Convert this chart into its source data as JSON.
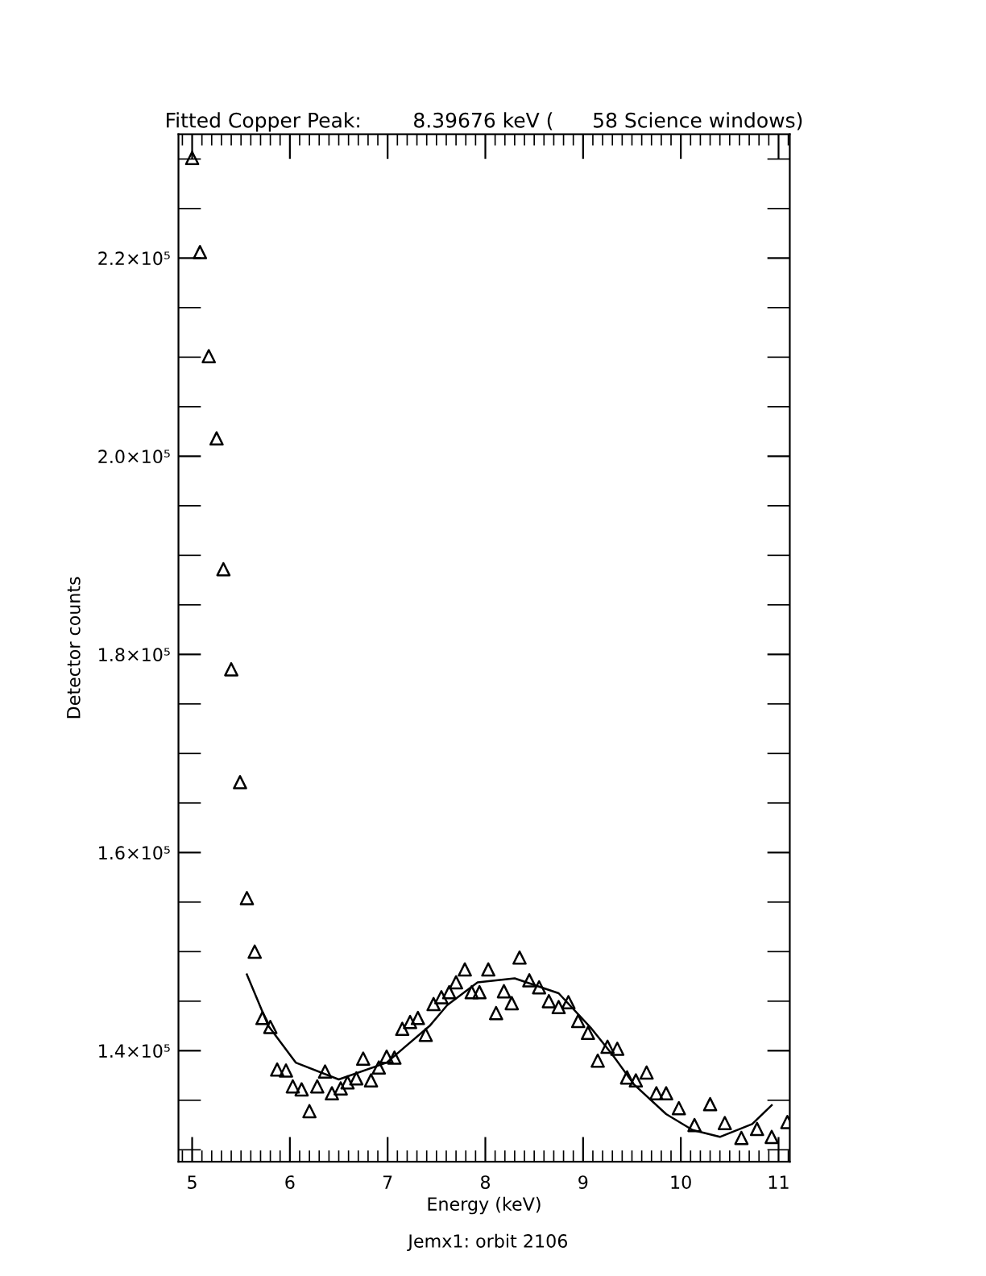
{
  "chart_data": {
    "type": "scatter",
    "title": "Fitted Copper Peak:        8.39676 keV (      58 Science windows)",
    "xlabel": "Energy (keV)",
    "ylabel": "Detector counts",
    "annotations": [
      "Jemx1: orbit 2106"
    ],
    "marker": "triangle",
    "grid": false,
    "legend": false,
    "xlim": [
      4.86,
      11.115
    ],
    "ylim": [
      128800,
      232500
    ],
    "xticks": [
      5,
      6,
      7,
      8,
      9,
      10,
      11,
      {
        "value": 4.9,
        "label": null
      },
      {
        "value": 5.1,
        "label": null
      },
      {
        "value": 5.2,
        "label": null
      },
      {
        "value": 5.3,
        "label": null
      },
      {
        "value": 5.4,
        "label": null
      },
      {
        "value": 5.5,
        "label": null
      },
      {
        "value": 5.6,
        "label": null
      },
      {
        "value": 5.7,
        "label": null
      },
      {
        "value": 5.8,
        "label": null
      },
      {
        "value": 5.9,
        "label": null
      },
      {
        "value": 6.1,
        "label": null
      },
      {
        "value": 6.2,
        "label": null
      },
      {
        "value": 6.3,
        "label": null
      },
      {
        "value": 6.4,
        "label": null
      },
      {
        "value": 6.5,
        "label": null
      },
      {
        "value": 6.6,
        "label": null
      },
      {
        "value": 6.7,
        "label": null
      },
      {
        "value": 6.8,
        "label": null
      },
      {
        "value": 6.9,
        "label": null
      },
      {
        "value": 7.1,
        "label": null
      },
      {
        "value": 7.2,
        "label": null
      },
      {
        "value": 7.3,
        "label": null
      },
      {
        "value": 7.4,
        "label": null
      },
      {
        "value": 7.5,
        "label": null
      },
      {
        "value": 7.6,
        "label": null
      },
      {
        "value": 7.7,
        "label": null
      },
      {
        "value": 7.8,
        "label": null
      },
      {
        "value": 7.9,
        "label": null
      },
      {
        "value": 8.1,
        "label": null
      },
      {
        "value": 8.2,
        "label": null
      },
      {
        "value": 8.3,
        "label": null
      },
      {
        "value": 8.4,
        "label": null
      },
      {
        "value": 8.5,
        "label": null
      },
      {
        "value": 8.6,
        "label": null
      },
      {
        "value": 8.7,
        "label": null
      },
      {
        "value": 8.8,
        "label": null
      },
      {
        "value": 8.9,
        "label": null
      },
      {
        "value": 9.1,
        "label": null
      },
      {
        "value": 9.2,
        "label": null
      },
      {
        "value": 9.3,
        "label": null
      },
      {
        "value": 9.4,
        "label": null
      },
      {
        "value": 9.5,
        "label": null
      },
      {
        "value": 9.6,
        "label": null
      },
      {
        "value": 9.7,
        "label": null
      },
      {
        "value": 9.8,
        "label": null
      },
      {
        "value": 9.9,
        "label": null
      },
      {
        "value": 10.1,
        "label": null
      },
      {
        "value": 10.2,
        "label": null
      },
      {
        "value": 10.3,
        "label": null
      },
      {
        "value": 10.4,
        "label": null
      },
      {
        "value": 10.5,
        "label": null
      },
      {
        "value": 10.6,
        "label": null
      },
      {
        "value": 10.7,
        "label": null
      },
      {
        "value": 10.8,
        "label": null
      },
      {
        "value": 10.9,
        "label": null
      },
      {
        "value": 11.1,
        "label": null
      }
    ],
    "yticks": [
      {
        "value": 140000,
        "label": "1.4×10⁵"
      },
      {
        "value": 160000,
        "label": "1.6×10⁵"
      },
      {
        "value": 180000,
        "label": "1.8×10⁵"
      },
      {
        "value": 200000,
        "label": "2.0×10⁵"
      },
      {
        "value": 220000,
        "label": "2.2×10⁵"
      },
      {
        "value": 130000,
        "label": null
      },
      {
        "value": 135000,
        "label": null
      },
      {
        "value": 145000,
        "label": null
      },
      {
        "value": 150000,
        "label": null
      },
      {
        "value": 155000,
        "label": null
      },
      {
        "value": 165000,
        "label": null
      },
      {
        "value": 170000,
        "label": null
      },
      {
        "value": 175000,
        "label": null
      },
      {
        "value": 185000,
        "label": null
      },
      {
        "value": 190000,
        "label": null
      },
      {
        "value": 195000,
        "label": null
      },
      {
        "value": 205000,
        "label": null
      },
      {
        "value": 210000,
        "label": null
      },
      {
        "value": 215000,
        "label": null
      },
      {
        "value": 225000,
        "label": null
      },
      {
        "value": 230000,
        "label": null
      }
    ],
    "series": [
      {
        "color": "#000000",
        "x": [
          5.0,
          5.08,
          5.17,
          5.25,
          5.32,
          5.4,
          5.49,
          5.56,
          5.64,
          5.72,
          5.8,
          5.87,
          5.96,
          6.03,
          6.12,
          6.2,
          6.28,
          6.36,
          6.43,
          6.52,
          6.59,
          6.68,
          6.75,
          6.83,
          6.91,
          6.99,
          7.07,
          7.15,
          7.23,
          7.31,
          7.39,
          7.47,
          7.55,
          7.63,
          7.7,
          7.79,
          7.86,
          7.94,
          8.03,
          8.11,
          8.19,
          8.27,
          8.35,
          8.45,
          8.55,
          8.65,
          8.75,
          8.85,
          8.95,
          9.05,
          9.15,
          9.25,
          9.35,
          9.45,
          9.54,
          9.65,
          9.75,
          9.85,
          9.98,
          10.14,
          10.3,
          10.45,
          10.62,
          10.78,
          10.93,
          11.09
        ],
        "values": [
          230100,
          220600,
          210100,
          201800,
          188600,
          178500,
          167100,
          155400,
          150000,
          143300,
          142400,
          138100,
          138000,
          136400,
          136100,
          133900,
          136400,
          137900,
          135700,
          136200,
          136800,
          137200,
          139200,
          137000,
          138300,
          139400,
          139300,
          142200,
          142900,
          143300,
          141600,
          144700,
          145400,
          145900,
          146900,
          148200,
          145900,
          145900,
          148200,
          143800,
          146000,
          144800,
          149400,
          147100,
          146400,
          145000,
          144400,
          144900,
          143000,
          141800,
          139000,
          140400,
          140200,
          137300,
          137000,
          137800,
          135700,
          135700,
          134200,
          132500,
          134600,
          132700,
          131200,
          132100,
          131300,
          132800
        ]
      },
      {
        "type": "line",
        "color": "#000000",
        "marker": "none",
        "line_style": "solid",
        "x": [
          5.56,
          5.78,
          6.06,
          6.5,
          6.99,
          7.43,
          7.61,
          7.92,
          8.3,
          8.75,
          9.08,
          9.3,
          9.52,
          9.85,
          10.12,
          10.4,
          10.73,
          10.93
        ],
        "values": [
          147700,
          142500,
          138800,
          137100,
          138800,
          142500,
          144600,
          146900,
          147300,
          145800,
          142300,
          139600,
          136600,
          133600,
          132000,
          131300,
          132600,
          134500
        ]
      }
    ]
  }
}
